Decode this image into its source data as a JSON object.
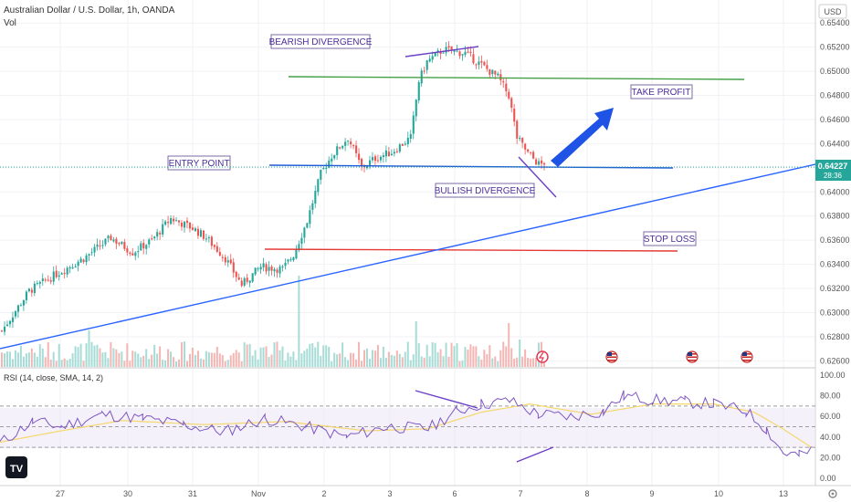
{
  "header": {
    "symbol_title": "Australian Dollar / U.S. Dollar, 1h, OANDA",
    "volume_label": "Vol",
    "currency_badge": "USD"
  },
  "price_badge": {
    "price": "0.64227",
    "countdown": "28:36"
  },
  "rsi_title": "RSI (14, close, SMA, 14, 2)",
  "annotations": {
    "bearish_divergence": "BEARISH DIVERGENCE",
    "entry_point": "ENTRY POINT",
    "take_profit": "TAKE PROFIT",
    "bullish_divergence": "BULLISH DIVERGENCE",
    "stop_loss": "STOP LOSS"
  },
  "colors": {
    "up": "#26a69a",
    "down": "#ef5350",
    "take_profit_line": "#43a047",
    "stop_loss_line": "#e53935",
    "entry_line": "#1e5bd6",
    "trend_line": "#2962ff",
    "divergence_line": "#6c3fc7",
    "rsi_line": "#7e57c2",
    "rsi_ma": "#f5d76e",
    "arrow": "#1e53e5",
    "badge": "#26a69a"
  },
  "chart_data": [
    {
      "type": "candlestick",
      "title": "Australian Dollar / U.S. Dollar, 1h, OANDA",
      "y_axis_unit": "USD",
      "y_ticks": [
        "0.65400",
        "0.65200",
        "0.65000",
        "0.64800",
        "0.64600",
        "0.64400",
        "0.64200",
        "0.64000",
        "0.63800",
        "0.63600",
        "0.63400",
        "0.63200",
        "0.63000",
        "0.62800",
        "0.62600"
      ],
      "ylim": [
        0.6255,
        0.655
      ],
      "x_ticks": [
        "27",
        "30",
        "31",
        "Nov",
        "2",
        "3",
        "6",
        "7",
        "8",
        "9",
        "10",
        "13"
      ],
      "last_price": 0.64227,
      "price_path": [
        {
          "x": 0,
          "y": 0.6285
        },
        {
          "x": 10,
          "y": 0.6318
        },
        {
          "x": 20,
          "y": 0.6332
        },
        {
          "x": 30,
          "y": 0.6345
        },
        {
          "x": 40,
          "y": 0.6362
        },
        {
          "x": 48,
          "y": 0.635
        },
        {
          "x": 55,
          "y": 0.636
        },
        {
          "x": 62,
          "y": 0.6378
        },
        {
          "x": 70,
          "y": 0.637
        },
        {
          "x": 75,
          "y": 0.6362
        },
        {
          "x": 82,
          "y": 0.6345
        },
        {
          "x": 88,
          "y": 0.6323
        },
        {
          "x": 95,
          "y": 0.6338
        },
        {
          "x": 103,
          "y": 0.6336
        },
        {
          "x": 107,
          "y": 0.6348
        },
        {
          "x": 112,
          "y": 0.6376
        },
        {
          "x": 117,
          "y": 0.6415
        },
        {
          "x": 121,
          "y": 0.643
        },
        {
          "x": 127,
          "y": 0.6445
        },
        {
          "x": 132,
          "y": 0.642
        },
        {
          "x": 137,
          "y": 0.6428
        },
        {
          "x": 143,
          "y": 0.6433
        },
        {
          "x": 150,
          "y": 0.6445
        },
        {
          "x": 153,
          "y": 0.6492
        },
        {
          "x": 156,
          "y": 0.6508
        },
        {
          "x": 162,
          "y": 0.6518
        },
        {
          "x": 170,
          "y": 0.6515
        },
        {
          "x": 176,
          "y": 0.6505
        },
        {
          "x": 182,
          "y": 0.6495
        },
        {
          "x": 186,
          "y": 0.648
        },
        {
          "x": 189,
          "y": 0.6445
        },
        {
          "x": 193,
          "y": 0.6432
        },
        {
          "x": 197,
          "y": 0.6423
        },
        {
          "x": 199,
          "y": 0.64227
        }
      ],
      "levels": [
        {
          "name": "TAKE PROFIT",
          "price": 0.6499
        },
        {
          "name": "ENTRY POINT",
          "price": 0.6424
        },
        {
          "name": "STOP LOSS",
          "price": 0.6352
        }
      ],
      "trend_line": {
        "from": {
          "x": 0,
          "y": 0.6278
        },
        "to": {
          "x": 300,
          "y": 0.6429
        }
      }
    },
    {
      "type": "line",
      "title": "RSI (14, close, SMA, 14, 2)",
      "y_ticks": [
        "100.00",
        "80.00",
        "60.00",
        "40.00",
        "20.00",
        "0.00"
      ],
      "ylim": [
        0,
        100
      ],
      "bands": [
        30,
        50,
        70
      ],
      "series": [
        {
          "values": [
            {
              "x": 0,
              "y": 34
            },
            {
              "x": 8,
              "y": 55
            },
            {
              "x": 15,
              "y": 50
            },
            {
              "x": 25,
              "y": 62
            },
            {
              "x": 35,
              "y": 58
            },
            {
              "x": 45,
              "y": 52
            },
            {
              "x": 55,
              "y": 45
            },
            {
              "x": 65,
              "y": 58
            },
            {
              "x": 75,
              "y": 50
            },
            {
              "x": 85,
              "y": 40
            },
            {
              "x": 95,
              "y": 50
            },
            {
              "x": 105,
              "y": 48
            },
            {
              "x": 112,
              "y": 65
            },
            {
              "x": 118,
              "y": 72
            },
            {
              "x": 125,
              "y": 75
            },
            {
              "x": 132,
              "y": 62
            },
            {
              "x": 140,
              "y": 60
            },
            {
              "x": 148,
              "y": 65
            },
            {
              "x": 153,
              "y": 80
            },
            {
              "x": 160,
              "y": 76
            },
            {
              "x": 168,
              "y": 74
            },
            {
              "x": 175,
              "y": 72
            },
            {
              "x": 183,
              "y": 65
            },
            {
              "x": 188,
              "y": 48
            },
            {
              "x": 192,
              "y": 25
            },
            {
              "x": 196,
              "y": 22
            },
            {
              "x": 199,
              "y": 27
            }
          ]
        },
        {
          "values": [
            {
              "x": 0,
              "y": 35
            },
            {
              "x": 15,
              "y": 46
            },
            {
              "x": 30,
              "y": 56
            },
            {
              "x": 50,
              "y": 52
            },
            {
              "x": 70,
              "y": 55
            },
            {
              "x": 90,
              "y": 46
            },
            {
              "x": 105,
              "y": 48
            },
            {
              "x": 118,
              "y": 64
            },
            {
              "x": 130,
              "y": 72
            },
            {
              "x": 145,
              "y": 62
            },
            {
              "x": 160,
              "y": 72
            },
            {
              "x": 175,
              "y": 72
            },
            {
              "x": 185,
              "y": 64
            },
            {
              "x": 192,
              "y": 48
            },
            {
              "x": 199,
              "y": 30
            }
          ]
        }
      ]
    }
  ]
}
